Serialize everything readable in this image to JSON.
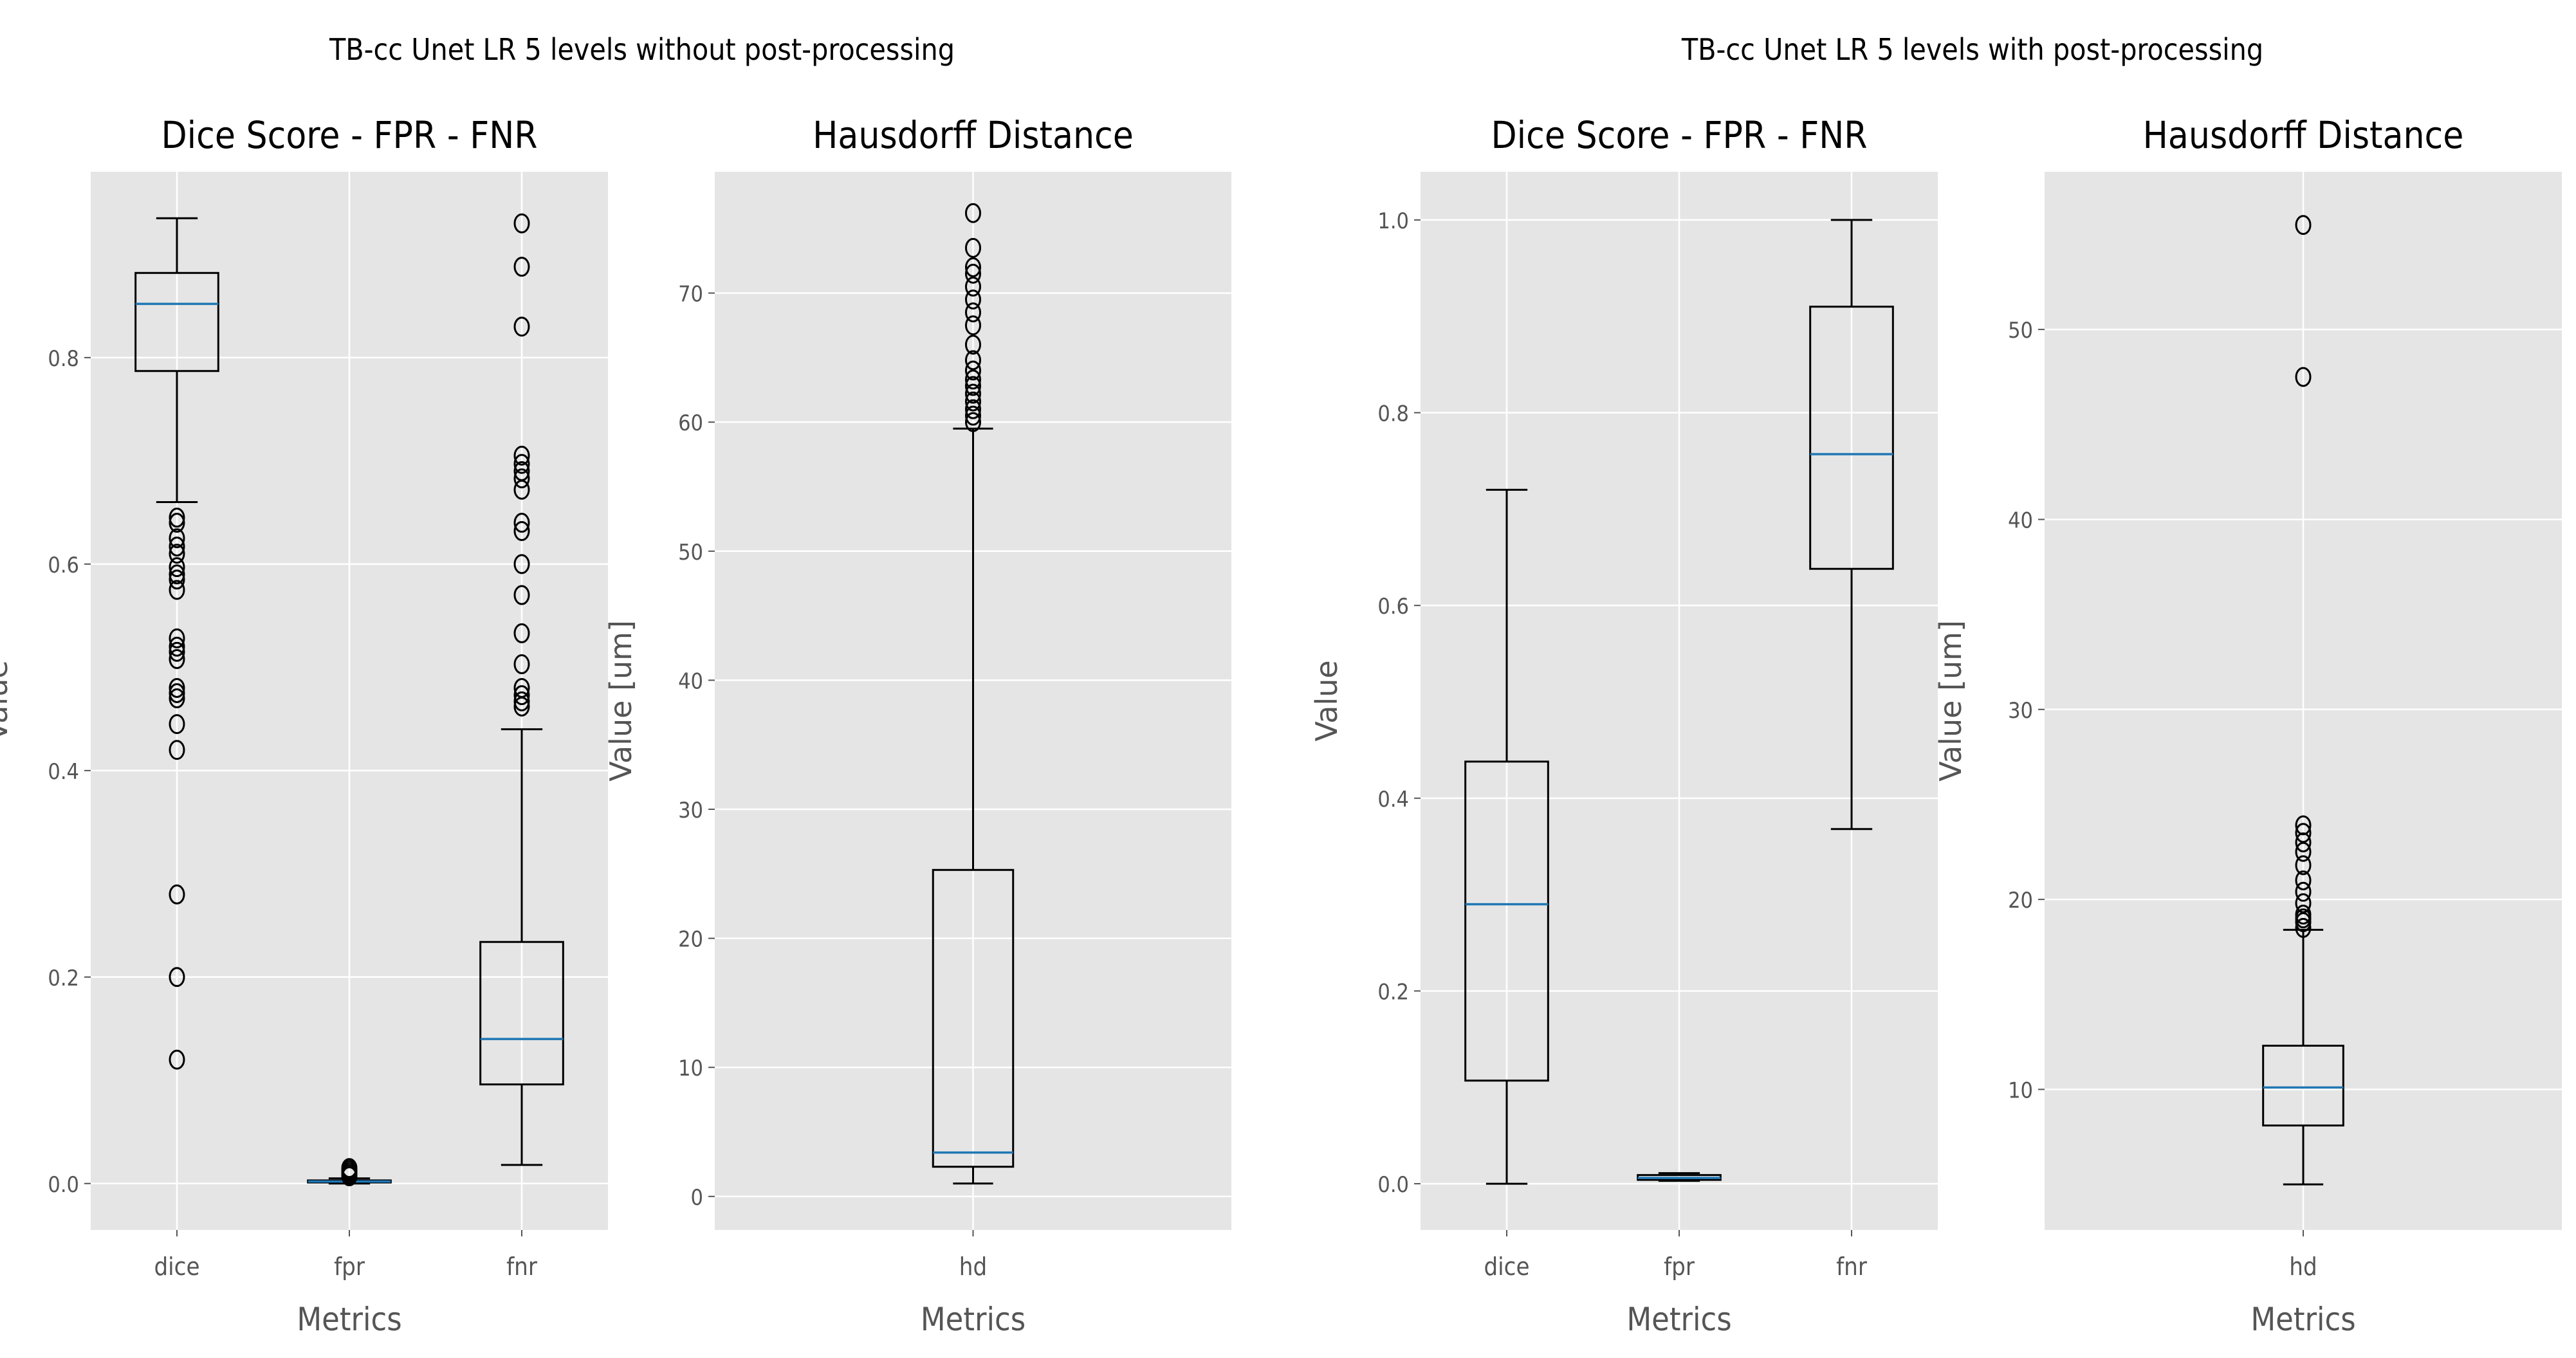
{
  "colors": {
    "panel_bg": "#e5e5e5",
    "grid": "#ffffff",
    "box": "#000000",
    "median": "#1f77b4",
    "text": "#555555"
  },
  "chart_data": [
    {
      "suptitle": "TB-cc Unet LR 5 levels without post-processing",
      "charts": [
        {
          "type": "box",
          "title": "Dice Score - FPR - FNR",
          "xlabel": "Metrics",
          "ylabel": "Value",
          "ylim": [
            -0.045,
            0.98
          ],
          "yticks": [
            0.0,
            0.2,
            0.4,
            0.6,
            0.8
          ],
          "ytick_labels": [
            "0.0",
            "0.2",
            "0.4",
            "0.6",
            "0.8"
          ],
          "categories": [
            "dice",
            "fpr",
            "fnr"
          ],
          "boxes": [
            {
              "whislo": 0.66,
              "q1": 0.787,
              "med": 0.852,
              "q3": 0.882,
              "whishi": 0.935,
              "fliers": [
                0.645,
                0.64,
                0.625,
                0.617,
                0.61,
                0.597,
                0.59,
                0.585,
                0.575,
                0.528,
                0.52,
                0.515,
                0.508,
                0.48,
                0.475,
                0.47,
                0.445,
                0.42,
                0.28,
                0.2,
                0.12
              ]
            },
            {
              "whislo": 0.0,
              "q1": 0.001,
              "med": 0.002,
              "q3": 0.003,
              "whishi": 0.005,
              "fliers": [
                0.007,
                0.009,
                0.011,
                0.013,
                0.015
              ]
            },
            {
              "whislo": 0.018,
              "q1": 0.096,
              "med": 0.14,
              "q3": 0.234,
              "whishi": 0.44,
              "fliers": [
                0.93,
                0.888,
                0.83,
                0.705,
                0.697,
                0.69,
                0.683,
                0.672,
                0.64,
                0.632,
                0.6,
                0.57,
                0.533,
                0.503,
                0.48,
                0.473,
                0.467,
                0.462
              ]
            }
          ]
        },
        {
          "type": "box",
          "title": "Hausdorff Distance",
          "xlabel": "Metrics",
          "ylabel": "Value [um]",
          "ylim": [
            -2.6,
            79.4
          ],
          "yticks": [
            0,
            10,
            20,
            30,
            40,
            50,
            60,
            70
          ],
          "ytick_labels": [
            "0",
            "10",
            "20",
            "30",
            "40",
            "50",
            "60",
            "70"
          ],
          "categories": [
            "hd"
          ],
          "boxes": [
            {
              "whislo": 1.0,
              "q1": 2.3,
              "med": 3.4,
              "q3": 25.3,
              "whishi": 59.5,
              "fliers": [
                76.2,
                73.5,
                72.0,
                71.5,
                70.5,
                69.5,
                68.5,
                67.5,
                66.0,
                64.8,
                64.0,
                63.3,
                62.8,
                62.2,
                61.6,
                61.0,
                60.5,
                60.0
              ]
            }
          ]
        }
      ]
    },
    {
      "suptitle": "TB-cc Unet LR 5 levels with post-processing",
      "charts": [
        {
          "type": "box",
          "title": "Dice Score - FPR - FNR",
          "xlabel": "Metrics",
          "ylabel": "Value",
          "ylim": [
            -0.048,
            1.05
          ],
          "yticks": [
            0.0,
            0.2,
            0.4,
            0.6,
            0.8,
            1.0
          ],
          "ytick_labels": [
            "0.0",
            "0.2",
            "0.4",
            "0.6",
            "0.8",
            "1.0"
          ],
          "categories": [
            "dice",
            "fpr",
            "fnr"
          ],
          "boxes": [
            {
              "whislo": 0.0,
              "q1": 0.107,
              "med": 0.29,
              "q3": 0.438,
              "whishi": 0.72,
              "fliers": []
            },
            {
              "whislo": 0.003,
              "q1": 0.004,
              "med": 0.006,
              "q3": 0.009,
              "whishi": 0.011,
              "fliers": []
            },
            {
              "whislo": 0.368,
              "q1": 0.638,
              "med": 0.757,
              "q3": 0.91,
              "whishi": 1.0,
              "fliers": []
            }
          ]
        },
        {
          "type": "box",
          "title": "Hausdorff Distance",
          "xlabel": "Metrics",
          "ylabel": "Value [um]",
          "ylim": [
            2.6,
            58.3
          ],
          "yticks": [
            10,
            20,
            30,
            40,
            50
          ],
          "ytick_labels": [
            "10",
            "20",
            "30",
            "40",
            "50"
          ],
          "categories": [
            "hd"
          ],
          "boxes": [
            {
              "whislo": 5.0,
              "q1": 8.1,
              "med": 10.1,
              "q3": 12.3,
              "whishi": 18.4,
              "fliers": [
                55.5,
                47.5,
                23.9,
                23.5,
                23.0,
                22.5,
                21.8,
                21.0,
                20.4,
                19.8,
                19.2,
                19.0,
                18.8,
                18.5
              ]
            }
          ]
        }
      ]
    }
  ]
}
